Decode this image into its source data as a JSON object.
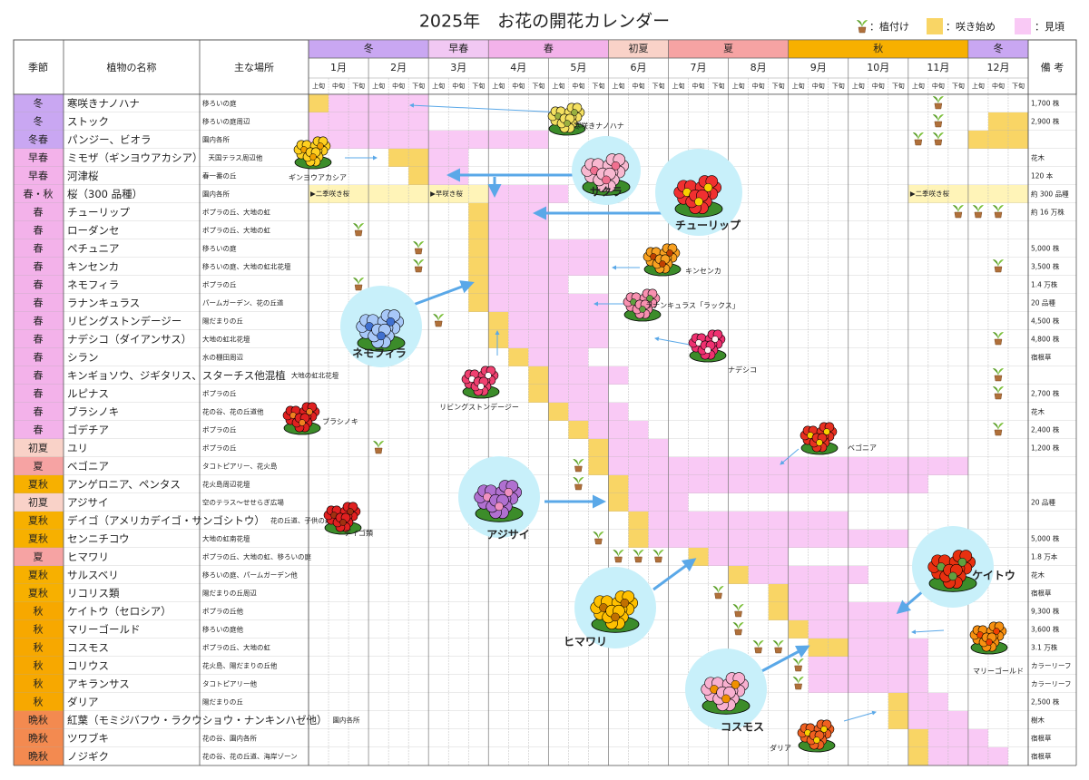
{
  "header": {
    "title": "2025年　お花の開花カレンダー",
    "legend": {
      "plant": "：植付け",
      "start": "：咲き始め",
      "full": "：見頃"
    }
  },
  "table": {
    "columns": {
      "season": "季節",
      "name": "植物の名称",
      "place": "主な場所",
      "note": "備 考"
    },
    "season_bands": [
      {
        "label": "冬",
        "from": 0,
        "to": 5,
        "color": "#c9a7f2"
      },
      {
        "label": "早春",
        "from": 6,
        "to": 8,
        "color": "#f1c8f3"
      },
      {
        "label": "春",
        "from": 9,
        "to": 14,
        "color": "#f3b2ea"
      },
      {
        "label": "初夏",
        "from": 15,
        "to": 17,
        "color": "#f9d2c8"
      },
      {
        "label": "夏",
        "from": 18,
        "to": 23,
        "color": "#f6a3a3"
      },
      {
        "label": "秋",
        "from": 24,
        "to": 32,
        "color": "#f7b000"
      },
      {
        "label": "冬",
        "from": 33,
        "to": 35,
        "color": "#c9a7f2"
      }
    ],
    "months": [
      "1月",
      "2月",
      "3月",
      "4月",
      "5月",
      "6月",
      "7月",
      "8月",
      "9月",
      "10月",
      "11月",
      "12月"
    ],
    "dekads": [
      "上旬",
      "中旬",
      "下旬"
    ],
    "rows": [
      {
        "season": "冬",
        "color": "#c9a7f2",
        "name": "寒咲きナノハナ",
        "place": "移ろいの庭",
        "note": "1,700 株",
        "start": [
          [
            0,
            0
          ]
        ],
        "full": [
          [
            1,
            5
          ]
        ],
        "plant": [
          31
        ]
      },
      {
        "season": "冬",
        "color": "#c9a7f2",
        "name": "ストック",
        "place": "移ろいの庭周辺",
        "note": "2,900 株",
        "start": [
          [
            34,
            35
          ]
        ],
        "full": [
          [
            0,
            5
          ]
        ],
        "plant": [
          31
        ]
      },
      {
        "season": "冬春",
        "color": "#c9a7f2",
        "name": "パンジー、ビオラ",
        "place": "園内各所",
        "start": [
          [
            33,
            35
          ]
        ],
        "full": [
          [
            0,
            11
          ]
        ],
        "plant": [
          30,
          31
        ]
      },
      {
        "season": "早春",
        "color": "#f3b2ea",
        "name": "ミモザ（ギンヨウアカシア）",
        "place": "天国テラス周辺他",
        "note": "花木",
        "start": [
          [
            4,
            5
          ]
        ],
        "full": [
          [
            6,
            7
          ]
        ],
        "plant": []
      },
      {
        "season": "早春",
        "color": "#f3b2ea",
        "name": "河津桜",
        "place": "春一番の丘",
        "note": "120 本",
        "start": [
          [
            5,
            5
          ]
        ],
        "full": [
          [
            6,
            7
          ]
        ],
        "plant": []
      },
      {
        "season": "春・秋",
        "color": "#f3b2ea",
        "name": "桜（300 品種）",
        "place": "園内各所",
        "note": "約 300 品種",
        "pale": [
          [
            0,
            5
          ],
          [
            6,
            8
          ],
          [
            30,
            35
          ]
        ],
        "markers": [
          {
            "at": 0,
            "label": "▶二季咲き桜"
          },
          {
            "at": 6,
            "label": "▶早咲き桜"
          },
          {
            "at": 30,
            "label": "▶二季咲き桜"
          }
        ],
        "start": [],
        "full": [
          [
            9,
            12
          ]
        ],
        "plant": []
      },
      {
        "season": "春",
        "color": "#f3b2ea",
        "name": "チューリップ",
        "place": "ポプラの丘、大地の虹",
        "note": "約 16 万株",
        "start": [
          [
            8,
            8
          ]
        ],
        "full": [
          [
            9,
            11
          ]
        ],
        "plant": [
          32,
          33,
          34
        ]
      },
      {
        "season": "春",
        "color": "#f3b2ea",
        "name": "ローダンセ",
        "place": "ポプラの丘、大地の虹",
        "start": [
          [
            8,
            8
          ]
        ],
        "full": [
          [
            9,
            11
          ]
        ],
        "plant": [
          2
        ]
      },
      {
        "season": "春",
        "color": "#f3b2ea",
        "name": "ペチュニア",
        "place": "移ろいの庭",
        "note": "5,000 株",
        "start": [
          [
            8,
            8
          ]
        ],
        "full": [
          [
            9,
            14
          ]
        ],
        "plant": [
          5
        ]
      },
      {
        "season": "春",
        "color": "#f3b2ea",
        "name": "キンセンカ",
        "place": "移ろいの庭、大地の虹北花壇",
        "note": "3,500 株",
        "start": [
          [
            8,
            8
          ]
        ],
        "full": [
          [
            9,
            14
          ]
        ],
        "plant": [
          5,
          34
        ]
      },
      {
        "season": "春",
        "color": "#f3b2ea",
        "name": "ネモフィラ",
        "place": "ポプラの丘",
        "note": "1.4 万株",
        "start": [
          [
            8,
            8
          ]
        ],
        "full": [
          [
            9,
            12
          ]
        ],
        "plant": [
          2
        ]
      },
      {
        "season": "春",
        "color": "#f3b2ea",
        "name": "ラナンキュラス",
        "place": "パームガーデン、花の丘道",
        "note": "20 品種",
        "start": [
          [
            8,
            8
          ]
        ],
        "full": [
          [
            9,
            14
          ]
        ],
        "plant": []
      },
      {
        "season": "春",
        "color": "#f3b2ea",
        "name": "リビングストンデージー",
        "place": "陽だまりの丘",
        "note": "4,500 株",
        "start": [
          [
            9,
            9
          ]
        ],
        "full": [
          [
            10,
            14
          ]
        ],
        "plant": [
          6
        ]
      },
      {
        "season": "春",
        "color": "#f3b2ea",
        "name": "ナデシコ（ダイアンサス）",
        "place": "大地の虹北花壇",
        "note": "4,800 株",
        "start": [
          [
            9,
            9
          ]
        ],
        "full": [
          [
            10,
            14
          ]
        ],
        "plant": [
          34
        ]
      },
      {
        "season": "春",
        "color": "#f3b2ea",
        "name": "シラン",
        "place": "水の棚田周辺",
        "note": "宿根草",
        "start": [
          [
            10,
            10
          ]
        ],
        "full": [
          [
            11,
            13
          ]
        ],
        "plant": []
      },
      {
        "season": "春",
        "color": "#f3b2ea",
        "name": "キンギョソウ、ジギタリス、スターチス他混植",
        "place": "大地の虹北花壇",
        "start": [
          [
            11,
            11
          ]
        ],
        "full": [
          [
            12,
            15
          ]
        ],
        "plant": [
          34
        ]
      },
      {
        "season": "春",
        "color": "#f3b2ea",
        "name": "ルピナス",
        "place": "ポプラの丘",
        "note": "2,700 株",
        "start": [
          [
            11,
            11
          ]
        ],
        "full": [
          [
            12,
            14
          ]
        ],
        "plant": [
          34
        ]
      },
      {
        "season": "春",
        "color": "#f3b2ea",
        "name": "ブラシノキ",
        "place": "花の谷、花の丘道他",
        "note": "花木",
        "start": [
          [
            12,
            12
          ]
        ],
        "full": [
          [
            13,
            15
          ]
        ],
        "plant": []
      },
      {
        "season": "春",
        "color": "#f3b2ea",
        "name": "ゴデチア",
        "place": "ポプラの丘",
        "note": "2,400 株",
        "start": [
          [
            13,
            13
          ]
        ],
        "full": [
          [
            14,
            16
          ]
        ],
        "plant": [
          34
        ]
      },
      {
        "season": "初夏",
        "color": "#f9d2c8",
        "name": "ユリ",
        "place": "ポプラの丘",
        "note": "1,200 株",
        "start": [
          [
            14,
            14
          ]
        ],
        "full": [
          [
            15,
            17
          ]
        ],
        "plant": [
          3
        ]
      },
      {
        "season": "夏",
        "color": "#f6a3a3",
        "name": "ベゴニア",
        "place": "タコトピアリー、花火島",
        "start": [
          [
            14,
            14
          ]
        ],
        "full": [
          [
            15,
            32
          ]
        ],
        "plant": [
          13
        ]
      },
      {
        "season": "夏秋",
        "color": "#f7b000",
        "name": "アンゲロニア、ペンタス",
        "place": "花火島周辺花壇",
        "start": [
          [
            15,
            15
          ]
        ],
        "full": [
          [
            16,
            30
          ]
        ],
        "plant": [
          13
        ]
      },
      {
        "season": "初夏",
        "color": "#f9d2c8",
        "name": "アジサイ",
        "place": "空のテラス〜せせらぎ広場",
        "note": "20 品種",
        "start": [
          [
            15,
            15
          ]
        ],
        "full": [
          [
            16,
            18
          ]
        ],
        "plant": []
      },
      {
        "season": "夏秋",
        "color": "#f7b000",
        "name": "デイゴ（アメリカデイゴ・サンゴシトウ）",
        "place": "花の丘道、子供の森他",
        "start": [
          [
            16,
            16
          ]
        ],
        "full": [
          [
            17,
            26
          ]
        ],
        "plant": []
      },
      {
        "season": "夏秋",
        "color": "#f7b000",
        "name": "センニチコウ",
        "place": "大地の虹南花壇",
        "note": "5,000 株",
        "start": [
          [
            16,
            16
          ]
        ],
        "full": [
          [
            17,
            29
          ]
        ],
        "plant": [
          14
        ]
      },
      {
        "season": "夏",
        "color": "#f6a3a3",
        "name": "ヒマワリ",
        "place": "ポプラの丘、大地の虹、移ろいの庭",
        "note": "1.8 万本",
        "start": [
          [
            19,
            19
          ]
        ],
        "full": [
          [
            20,
            23
          ]
        ],
        "plant": [
          15,
          16,
          17
        ]
      },
      {
        "season": "夏秋",
        "color": "#f7b000",
        "name": "サルスベリ",
        "place": "移ろいの庭、パームガーデン他",
        "note": "花木",
        "start": [
          [
            21,
            21
          ]
        ],
        "full": [
          [
            22,
            27
          ]
        ],
        "plant": []
      },
      {
        "season": "夏秋",
        "color": "#f7b000",
        "name": "リコリス類",
        "place": "陽だまりの丘周辺",
        "note": "宿根草",
        "start": [
          [
            23,
            23
          ]
        ],
        "full": [
          [
            24,
            26
          ]
        ],
        "plant": [
          20
        ]
      },
      {
        "season": "秋",
        "color": "#f7a800",
        "name": "ケイトウ（セロシア）",
        "place": "ポプラの丘他",
        "note": "9,300 株",
        "start": [
          [
            23,
            23
          ]
        ],
        "full": [
          [
            24,
            29
          ]
        ],
        "plant": [
          21
        ]
      },
      {
        "season": "秋",
        "color": "#f7a800",
        "name": "マリーゴールド",
        "place": "移ろいの庭他",
        "note": "3,600 株",
        "start": [
          [
            24,
            24
          ]
        ],
        "full": [
          [
            25,
            29
          ]
        ],
        "plant": [
          21
        ]
      },
      {
        "season": "秋",
        "color": "#f7a800",
        "name": "コスモス",
        "place": "ポプラの丘、大地の虹",
        "note": "3.1 万株",
        "start": [
          [
            25,
            26
          ]
        ],
        "full": [
          [
            27,
            30
          ]
        ],
        "plant": [
          22,
          23
        ]
      },
      {
        "season": "秋",
        "color": "#f7a800",
        "name": "コリウス",
        "place": "花火島、陽だまりの丘他",
        "note": "カラーリーフ",
        "start": [],
        "full": [
          [
            25,
            30
          ]
        ],
        "plant": [
          24
        ]
      },
      {
        "season": "秋",
        "color": "#f7a800",
        "name": "アキランサス",
        "place": "タコトピアリー他",
        "note": "カラーリーフ",
        "start": [],
        "full": [
          [
            25,
            30
          ]
        ],
        "plant": [
          24
        ]
      },
      {
        "season": "秋",
        "color": "#f7a800",
        "name": "ダリア",
        "place": "陽だまりの丘",
        "note": "2,500 株",
        "start": [
          [
            29,
            29
          ]
        ],
        "full": [
          [
            30,
            31
          ]
        ],
        "plant": []
      },
      {
        "season": "晩秋",
        "color": "#f38a50",
        "name": "紅葉（モミジバフウ・ラクウショウ・ナンキンハゼ他）",
        "place": "園内各所",
        "note": "樹木",
        "start": [
          [
            29,
            29
          ]
        ],
        "full": [
          [
            30,
            32
          ]
        ],
        "plant": []
      },
      {
        "season": "晩秋",
        "color": "#f38a50",
        "name": "ツワブキ",
        "place": "花の谷、園内各所",
        "note": "宿根草",
        "start": [
          [
            30,
            30
          ]
        ],
        "full": [
          [
            31,
            33
          ]
        ],
        "plant": []
      },
      {
        "season": "晩秋",
        "color": "#f38a50",
        "name": "ノジギク",
        "place": "花の谷、花の丘道、海岸ゾーン",
        "note": "宿根草",
        "start": [
          [
            30,
            30
          ]
        ],
        "full": [
          [
            31,
            34
          ]
        ],
        "plant": []
      }
    ]
  },
  "illustrations": [
    "寒咲きナノハナ",
    "ギンヨウアカシア",
    "サクラ",
    "チューリップ",
    "キンセンカ",
    "ラナンキュラス「ラックス」",
    "ネモフィラ",
    "ナデシコ",
    "リビングストンデージー",
    "ブラシノキ",
    "ベゴニア",
    "アジサイ",
    "デイゴ類",
    "ケイトウ",
    "マリーゴールド",
    "ヒマワリ",
    "コスモス",
    "ダリア"
  ]
}
